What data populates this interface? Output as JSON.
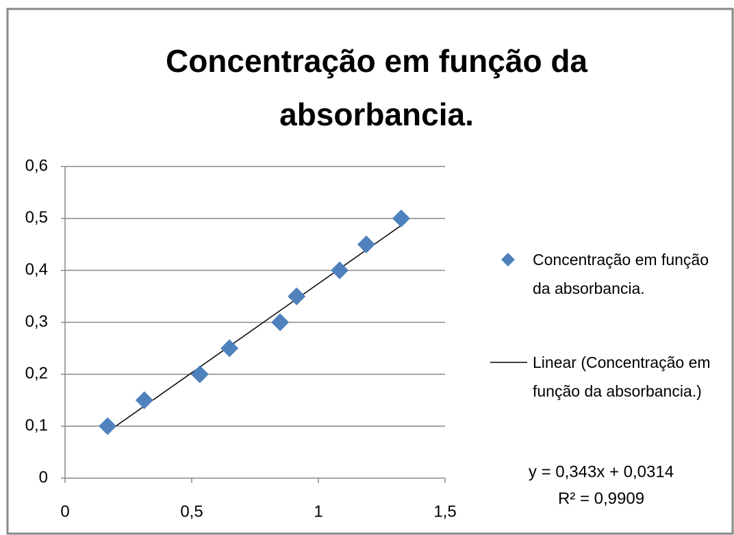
{
  "chart_data": {
    "type": "scatter",
    "title": "Concentração em função da absorbancia.",
    "series": [
      {
        "name": "Concentração em função da absorbancia.",
        "color": "#4f81bd",
        "x": [
          0.168,
          0.313,
          0.532,
          0.649,
          0.849,
          0.914,
          1.084,
          1.189,
          1.327
        ],
        "values": [
          0.1,
          0.15,
          0.2,
          0.25,
          0.3,
          0.35,
          0.4,
          0.45,
          0.5
        ]
      }
    ],
    "trendline": {
      "name": "Linear (Concentração em função da absorbancia.)",
      "color": "#000000",
      "slope": 0.343,
      "intercept": 0.0314,
      "equation": "y = 0,343x + 0,0314",
      "r_squared": "R² = 0,9909"
    },
    "xlim": [
      0,
      1.5
    ],
    "xticks": [
      0,
      {
        "value": 0.5,
        "label": "0,5"
      },
      1,
      {
        "value": 1.5,
        "label": "1,5"
      }
    ],
    "ylim": [
      0,
      0.6
    ],
    "yticks": [
      0,
      {
        "value": 0.1,
        "label": "0,1"
      },
      {
        "value": 0.2,
        "label": "0,2"
      },
      {
        "value": 0.3,
        "label": "0,3"
      },
      {
        "value": 0.4,
        "label": "0,4"
      },
      {
        "value": 0.5,
        "label": "0,5"
      },
      {
        "value": 0.6,
        "label": "0,6"
      }
    ],
    "grid": true,
    "legend": "right"
  }
}
